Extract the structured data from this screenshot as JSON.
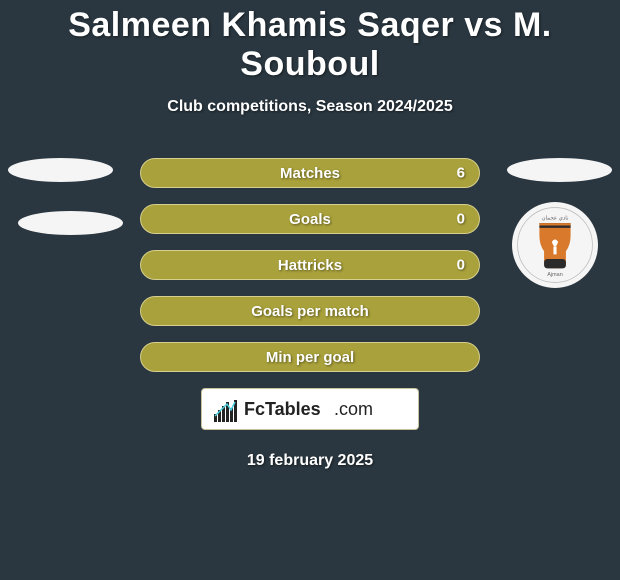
{
  "title": "Salmeen Khamis Saqer vs M. Souboul",
  "subtitle": "Club competitions, Season 2024/2025",
  "date": "19 february 2025",
  "branding_text": "FcTables.com",
  "colors": {
    "background": "#2a3740",
    "bar_bg": "#a9a13b",
    "bar_border": "#d6cf8e",
    "text": "#ffffff"
  },
  "bars": [
    {
      "label": "Matches",
      "right_value": "6",
      "show_right": true
    },
    {
      "label": "Goals",
      "right_value": "0",
      "show_right": true
    },
    {
      "label": "Hattricks",
      "right_value": "0",
      "show_right": true
    },
    {
      "label": "Goals per match",
      "right_value": "",
      "show_right": false
    },
    {
      "label": "Min per goal",
      "right_value": "",
      "show_right": false
    }
  ],
  "club_badge": {
    "name": "ajman-club-badge",
    "primary_color": "#d9792b",
    "secondary_color": "#2b2b2b"
  }
}
